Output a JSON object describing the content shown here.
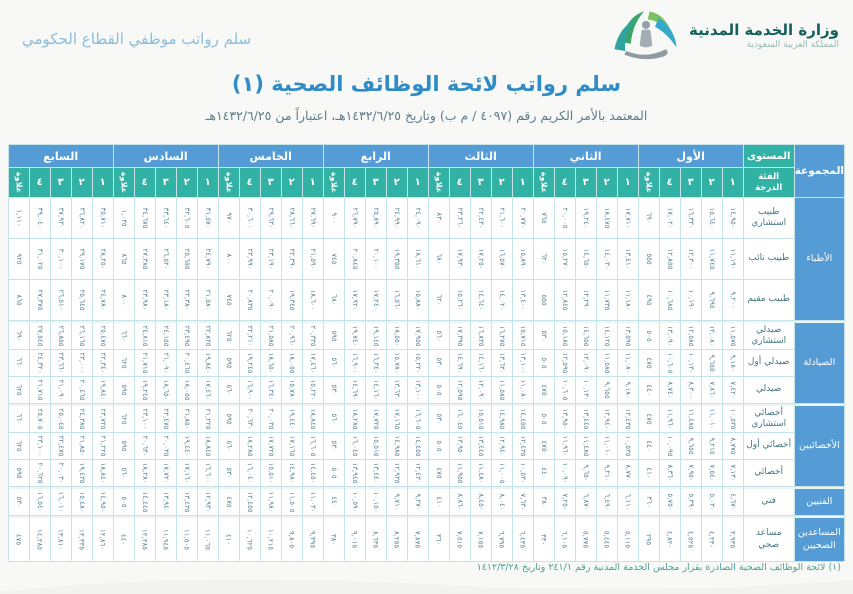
{
  "top_bar": {
    "slogan": "سلم رواتب موظفي القطاع الحكومي",
    "ministry_name": "وزارة الخدمة المدنية",
    "ministry_sub": "المملكة العربية السعودية"
  },
  "header": {
    "title": "سلم رواتب لائحة الوظائف الصحية (١)",
    "subtitle": "المعتمد بالأمر الكريم رقم (٤٠٩٧ / م ب) وتاريخ ١٤٣٢/٦/٢٥هـ، اعتباراً من ١٤٣٢/٦/٢٥هـ"
  },
  "footnote": "(١) لائحة الوظائف الصحية الصادرة بقرار مجلس الخدمة المدنية رقم ٢٤١/١ وتاريخ ١٤١٢/٣/٢٨",
  "colors": {
    "header_blue": "#559bd5",
    "header_teal": "#31b2a4",
    "grid_line": "#c5e4e8",
    "title_blue": "#2f8cc7",
    "number_text": "#5c8694",
    "footnote_teal": "#4aa294"
  },
  "table": {
    "corner": {
      "group": "المجموعة",
      "level": "المستوى",
      "grade_line1": "الفئة",
      "grade_line2": "الدرجة"
    },
    "allowance_label": "علاوة",
    "grade_cols": [
      "١",
      "٢",
      "٣",
      "٤"
    ],
    "levels": [
      "الأول",
      "الثاني",
      "الثالث",
      "الرابع",
      "الخامس",
      "السادس",
      "السابع"
    ],
    "groups": [
      {
        "name": "الأطباء",
        "rows": [
          {
            "label": "طبيب استشاري",
            "levels": [
              {
                "grades": [
                  "١٤,٩٥٠",
                  "١٥,٦٤٠",
                  "١٦,٣٣٠",
                  "١٧,٠٢٠"
                ],
                "allowance": "٦٩٠"
              },
              {
                "grades": [
                  "١٧,٧١٠",
                  "١٨,٤٧٥",
                  "١٩,٢٤٠",
                  "٢٠,٠٠٥"
                ],
                "allowance": "٧٦٥"
              },
              {
                "grades": [
                  "٢٠,٧٧٠",
                  "٢١,٦٠٠",
                  "٢٢,٤٣٠",
                  "٢٣,٢٦٠"
                ],
                "allowance": "٨٣٠"
              },
              {
                "grades": [
                  "٢٤,٠٩٠",
                  "٢٤,٩٩٠",
                  "٢٥,٨٩٠",
                  "٢٦,٧٩٠"
                ],
                "allowance": "٩٠٠"
              },
              {
                "grades": [
                  "٢٧,٦٩٠",
                  "٢٨,٦٦٠",
                  "٢٩,٦٣٠",
                  "٣٠,٦٠٠"
                ],
                "allowance": "٩٧٠"
              },
              {
                "grades": [
                  "٣١,٥٧٠",
                  "٣٢,٦٠٥",
                  "٣٣,٦٤٠",
                  "٣٤,٦٧٥"
                ],
                "allowance": "١,٠٣٥"
              },
              {
                "grades": [
                  "٣٥,٧١٠",
                  "٣٦,٨٢٠",
                  "٣٧,٩٣٠",
                  "٣٩,٠٤٠"
                ],
                "allowance": "١,١١٠"
              }
            ]
          },
          {
            "label": "طبيب نائب",
            "levels": [
              {
                "grades": [
                  "١١,١٩٠",
                  "١١,٧٤٥",
                  "١٢,٣٠٠",
                  "١٢,٨٥٥"
                ],
                "allowance": "٥٥٥"
              },
              {
                "grades": [
                  "١٣,٤١٠",
                  "١٤,٠٣٠",
                  "١٤,٦٥٠",
                  "١٥,٢٧٠"
                ],
                "allowance": "٦٢٠"
              },
              {
                "grades": [
                  "١٥,٨٩٠",
                  "١٦,٥٧٠",
                  "١٧,٢٥٠",
                  "١٧,٩٣٠"
                ],
                "allowance": "٦٨٠"
              },
              {
                "grades": [
                  "١٨,٦١٠",
                  "١٩,٣٥٥",
                  "٢٠,١٠٠",
                  "٢٠,٨٤٥"
                ],
                "allowance": "٧٤٥"
              },
              {
                "grades": [
                  "٢١,٥٩٠",
                  "٢٢,٣٩٠",
                  "٢٣,١٩٠",
                  "٢٣,٩٩٠"
                ],
                "allowance": "٨٠٠"
              },
              {
                "grades": [
                  "٢٤,٧٩٠",
                  "٢٥,٦٥٥",
                  "٢٦,٥٢٠",
                  "٢٧,٣٨٥"
                ],
                "allowance": "٨٦٥"
              },
              {
                "grades": [
                  "٢٨,٢٥٠",
                  "٢٩,١٧٥",
                  "٣٠,١٠٠",
                  "٣١,٠٢٥"
                ],
                "allowance": "٩٢٥"
              }
            ]
          },
          {
            "label": "طبيب مقيم",
            "levels": [
              {
                "grades": [
                  "٩,٢٠٠",
                  "٩,٦٩٥",
                  "١٠,١٩٠",
                  "١٠,٦٨٥"
                ],
                "allowance": "٤٩٥"
              },
              {
                "grades": [
                  "١١,١٨٠",
                  "١١,٧٣٥",
                  "١٢,٢٩٠",
                  "١٢,٨٤٥"
                ],
                "allowance": "٥٥٥"
              },
              {
                "grades": [
                  "١٣,٤٠٠",
                  "١٤,٠٢٠",
                  "١٤,٦٤٠",
                  "١٥,٢٦٠"
                ],
                "allowance": "٦٢٠"
              },
              {
                "grades": [
                  "١٥,٨٨٠",
                  "١٦,٥٦٠",
                  "١٧,٢٤٠",
                  "١٧,٩٢٠"
                ],
                "allowance": "٦٨٠"
              },
              {
                "grades": [
                  "١٨,٦٠٠",
                  "١٩,٣٤٥",
                  "٢٠,٠٩٠",
                  "٢٠,٨٣٥"
                ],
                "allowance": "٧٤٥"
              },
              {
                "grades": [
                  "٢١,٥٨٠",
                  "٢٢,٣٨٠",
                  "٢٣,١٨٠",
                  "٢٣,٩٨٠"
                ],
                "allowance": "٨٠٠"
              },
              {
                "grades": [
                  "٢٤,٧٨٠",
                  "٢٥,٦٤٥",
                  "٢٦,٥١٠",
                  "٢٧,٣٧٥"
                ],
                "allowance": "٨٦٥"
              }
            ]
          }
        ]
      },
      {
        "name": "الصيادلة",
        "rows": [
          {
            "label": "صيدلي استشاري",
            "levels": [
              {
                "grades": [
                  "١١,٥٧٥",
                  "١٢,٠٨٠",
                  "١٢,٥٨٥",
                  "١٣,٠٩٠"
                ],
                "allowance": "٥٠٥"
              },
              {
                "grades": [
                  "١٣,٥٩٥",
                  "١٤,١٢٥",
                  "١٤,٦٥٥",
                  "١٥,١٨٥"
                ],
                "allowance": "٥٣٠"
              },
              {
                "grades": [
                  "١٥,٧١٥",
                  "١٦,٢٧٥",
                  "١٦,٨٣٥",
                  "١٧,٣٩٥"
                ],
                "allowance": "٥٦٠"
              },
              {
                "grades": [
                  "١٧,٩٥٥",
                  "١٨,٥٥٠",
                  "١٩,١٤٥",
                  "١٩,٧٤٠"
                ],
                "allowance": "٥٩٥"
              },
              {
                "grades": [
                  "٢٠,٣٣٥",
                  "٢٠,٩٦٠",
                  "٢١,٥٨٥",
                  "٢٢,٢١٠"
                ],
                "allowance": "٦٢٥"
              },
              {
                "grades": [
                  "٢٢,٨٣٥",
                  "٢٣,٤٩٥",
                  "٢٤,١٥٥",
                  "٢٤,٨١٥"
                ],
                "allowance": "٦٦٠"
              },
              {
                "grades": [
                  "٢٥,٤٧٥",
                  "٢٦,١٦٥",
                  "٢٦,٨٥٥",
                  "٢٧,٥٤٥"
                ],
                "allowance": "٦٩٠"
              }
            ]
          },
          {
            "label": "صيدلي أول",
            "levels": [
              {
                "grades": [
                  "٩,١٨٠",
                  "٩,٦٥٥",
                  "١٠,١٣٠",
                  "١٠,٦٠٥"
                ],
                "allowance": "٤٧٥"
              },
              {
                "grades": [
                  "١١,٠٨٠",
                  "١١,٥٨٥",
                  "١٢,٠٩٠",
                  "١٢,٥٩٥"
                ],
                "allowance": "٥٠٥"
              },
              {
                "grades": [
                  "١٣,١٠٠",
                  "١٣,٦٣٠",
                  "١٤,١٦٠",
                  "١٤,٦٩٠"
                ],
                "allowance": "٥٣٠"
              },
              {
                "grades": [
                  "١٥,٢٢٠",
                  "١٥,٧٨٠",
                  "١٦,٣٤٠",
                  "١٦,٩٠٠"
                ],
                "allowance": "٥٦٠"
              },
              {
                "grades": [
                  "١٧,٤٦٠",
                  "١٨,٠٥٥",
                  "١٨,٦٥٠",
                  "١٩,٢٤٥"
                ],
                "allowance": "٥٩٥"
              },
              {
                "grades": [
                  "١٩,٨٤٠",
                  "٢٠,٤٦٥",
                  "٢١,٠٩٠",
                  "٢١,٧١٥"
                ],
                "allowance": "٦٢٥"
              },
              {
                "grades": [
                  "٢٢,٣٤٠",
                  "٢٣,٠٠٠",
                  "٢٣,٦٦٠",
                  "٢٤,٣٢٠"
                ],
                "allowance": "٦٦٠"
              }
            ]
          },
          {
            "label": "صيدلي",
            "levels": [
              {
                "grades": [
                  "٧,٤٢٠",
                  "٧,٨٦٠",
                  "٨,٣٠٠",
                  "٨,٧٤٠"
                ],
                "allowance": "٤٤٠"
              },
              {
                "grades": [
                  "٩,١٨٠",
                  "٩,٦٥٥",
                  "١٠,١٣٠",
                  "١٠,٦٠٥"
                ],
                "allowance": "٤٧٥"
              },
              {
                "grades": [
                  "١١,٠٨٠",
                  "١١,٥٨٥",
                  "١٢,٠٩٠",
                  "١٢,٥٩٥"
                ],
                "allowance": "٥٠٥"
              },
              {
                "grades": [
                  "١٣,١٠٠",
                  "١٣,٦٣٠",
                  "١٤,١٦٠",
                  "١٤,٦٩٠"
                ],
                "allowance": "٥٣٠"
              },
              {
                "grades": [
                  "١٥,٢٢٠",
                  "١٥,٧٨٠",
                  "١٦,٣٤٠",
                  "١٦,٩٠٠"
                ],
                "allowance": "٥٦٠"
              },
              {
                "grades": [
                  "١٧,٤٦٠",
                  "١٨,٠٥٥",
                  "١٨,٦٥٠",
                  "١٩,٢٤٥"
                ],
                "allowance": "٥٩٥"
              },
              {
                "grades": [
                  "١٩,٨٤٠",
                  "٢٠,٤٦٥",
                  "٢١,٠٩٠",
                  "٢١,٧١٥"
                ],
                "allowance": "٦٢٥"
              }
            ]
          }
        ]
      },
      {
        "name": "الأخصائيين",
        "rows": [
          {
            "label": "أخصائي استشاري",
            "levels": [
              {
                "grades": [
                  "١٠,٥٣٥",
                  "١١,٠١٠",
                  "١١,٤٨٥",
                  "١١,٩٦٠"
                ],
                "allowance": "٤٧٥"
              },
              {
                "grades": [
                  "١٢,٤٣٥",
                  "١٢,٩٤٠",
                  "١٣,٤٤٥",
                  "١٣,٩٥٠"
                ],
                "allowance": "٥٠٥"
              },
              {
                "grades": [
                  "١٤,٤٥٥",
                  "١٤,٩٨٥",
                  "١٥,٥١٥",
                  "١٦,٠٤٥"
                ],
                "allowance": "٥٣٠"
              },
              {
                "grades": [
                  "١٦,٦٠٥",
                  "١٧,١٦٥",
                  "١٧,٧٢٥",
                  "١٨,٢٨٥"
                ],
                "allowance": "٥٦٠"
              },
              {
                "grades": [
                  "١٨,٨٤٥",
                  "١٩,٤٤٠",
                  "٢٠,٠٣٥",
                  "٢٠,٦٣٠"
                ],
                "allowance": "٥٩٥"
              },
              {
                "grades": [
                  "٢١,٢٢٥",
                  "٢١,٨٥٠",
                  "٢٢,٤٧٥",
                  "٢٣,١٠٠"
                ],
                "allowance": "٦٢٥"
              },
              {
                "grades": [
                  "٢٣,٧٢٥",
                  "٢٤,٣٨٥",
                  "٢٥,٠٤٥",
                  "٢٥,٧٠٥"
                ],
                "allowance": "٦٦٠"
              }
            ]
          },
          {
            "label": "أخصائي أول",
            "levels": [
              {
                "grades": [
                  "٨,٧٧٥",
                  "٩,٢١٥",
                  "٩,٦٥٥",
                  "١٠,٠٩٥"
                ],
                "allowance": "٤٤٠"
              },
              {
                "grades": [
                  "١٠,٥٣٥",
                  "١١,٠١٠",
                  "١١,٤٨٥",
                  "١١,٩٦٠"
                ],
                "allowance": "٤٧٥"
              },
              {
                "grades": [
                  "١٢,٤٣٥",
                  "١٢,٩٤٠",
                  "١٣,٤٤٥",
                  "١٣,٩٥٠"
                ],
                "allowance": "٥٠٥"
              },
              {
                "grades": [
                  "١٤,٤٥٥",
                  "١٤,٩٨٥",
                  "١٥,٥١٥",
                  "١٦,٠٤٥"
                ],
                "allowance": "٥٣٠"
              },
              {
                "grades": [
                  "١٦,٦٠٥",
                  "١٧,١٦٥",
                  "١٧,٧٢٥",
                  "١٨,٢٨٥"
                ],
                "allowance": "٥٦٠"
              },
              {
                "grades": [
                  "١٨,٨٤٥",
                  "١٩,٤٤٠",
                  "٢٠,٠٣٥",
                  "٢٠,٦٣٠"
                ],
                "allowance": "٥٩٥"
              },
              {
                "grades": [
                  "٢١,٢٢٥",
                  "٢١,٨٥٠",
                  "٢٢,٤٧٥",
                  "٢٣,١٠٠"
                ],
                "allowance": "٦٢٥"
              }
            ]
          },
          {
            "label": "أخصائي",
            "levels": [
              {
                "grades": [
                  "٧,١٣٠",
                  "٧,٥٤٠",
                  "٧,٩٥٠",
                  "٨,٣٦٠"
                ],
                "allowance": "٤١٠"
              },
              {
                "grades": [
                  "٨,٧٧٠",
                  "٩,٢١٠",
                  "٩,٦٥٠",
                  "١٠,٠٩٠"
                ],
                "allowance": "٤٤٠"
              },
              {
                "grades": [
                  "١٠,٥٣٠",
                  "١١,٠٠٥",
                  "١١,٤٨٠",
                  "١١,٩٥٥"
                ],
                "allowance": "٤٧٥"
              },
              {
                "grades": [
                  "١٢,٤٣٠",
                  "١٢,٩٣٥",
                  "١٣,٤٤٠",
                  "١٣,٩٤٥"
                ],
                "allowance": "٥٠٥"
              },
              {
                "grades": [
                  "١٤,٤٥٠",
                  "١٤,٩٨٠",
                  "١٥,٥١٠",
                  "١٦,٠٤٠"
                ],
                "allowance": "٥٣٠"
              },
              {
                "grades": [
                  "١٦,٦٠٠",
                  "١٧,١٦٠",
                  "١٧,٧٢٠",
                  "١٨,٢٨٠"
                ],
                "allowance": "٥٦٠"
              },
              {
                "grades": [
                  "١٨,٨٤٠",
                  "١٩,٤٣٥",
                  "٢٠,٠٣٠",
                  "٢٠,٦٢٥"
                ],
                "allowance": "٥٩٥"
              }
            ]
          }
        ]
      },
      {
        "name": "الفنيين",
        "rows": [
          {
            "label": "فني",
            "levels": [
              {
                "grades": [
                  "٤,٦٧٠",
                  "٥,٠٣٠",
                  "٥,٣٩٠",
                  "٥,٧٥٠"
                ],
                "allowance": "٣٦٠"
              },
              {
                "grades": [
                  "٦,١١٠",
                  "٦,٤٩٠",
                  "٦,٨٧٠",
                  "٧,٢٥٠"
                ],
                "allowance": "٣٨٠"
              },
              {
                "grades": [
                  "٧,٦٣٠",
                  "٨,٠٤٠",
                  "٨,٤٥٠",
                  "٨,٨٦٠"
                ],
                "allowance": "٤١٠"
              },
              {
                "grades": [
                  "٩,٢٧٠",
                  "٩,٧١٠",
                  "١٠,١٥٠",
                  "١٠,٥٩٠"
                ],
                "allowance": "٤٤٠"
              },
              {
                "grades": [
                  "١١,٠٣٠",
                  "١١,٥٠٥",
                  "١١,٩٨٠",
                  "١٢,٤٥٥"
                ],
                "allowance": "٤٧٥"
              },
              {
                "grades": [
                  "١٢,٩٣٠",
                  "١٣,٤٣٥",
                  "١٣,٩٤٠",
                  "١٤,٤٤٥"
                ],
                "allowance": "٥٠٥"
              },
              {
                "grades": [
                  "١٤,٩٥٠",
                  "١٥,٤٨٠",
                  "١٦,٠١٠",
                  "١٦,٥٤٠"
                ],
                "allowance": "٥٣٠"
              }
            ]
          }
        ]
      },
      {
        "name": "المساعدين الصحيين",
        "rows": [
          {
            "label": "مساعد صحي",
            "levels": [
              {
                "grades": [
                  "٣,٩٣٥",
                  "٤,٢٣٠",
                  "٤,٥٢٥",
                  "٤,٨٢٠"
                ],
                "allowance": "٢٩٥"
              },
              {
                "grades": [
                  "٥,١١٥",
                  "٥,٤٤٥",
                  "٥,٧٧٥",
                  "٦,١٠٥"
                ],
                "allowance": "٣٣٠"
              },
              {
                "grades": [
                  "٦,٤٣٥",
                  "٦,٧٩٥",
                  "٧,١٥٥",
                  "٧,٥١٥"
                ],
                "allowance": "٣٦٠"
              },
              {
                "grades": [
                  "٧,٨٧٥",
                  "٨,٢٥٥",
                  "٨,٦٣٥",
                  "٩,٠١٥"
                ],
                "allowance": "٣٨٠"
              },
              {
                "grades": [
                  "٩,٣٩٥",
                  "٩,٨٠٥",
                  "١٠,٢١٥",
                  "١٠,٦٢٥"
                ],
                "allowance": "٤١٠"
              },
              {
                "grades": [
                  "١١,٠٦٥",
                  "١١,٥٠٥",
                  "١١,٩٤٥",
                  "١٢,٣٨٥"
                ],
                "allowance": "٤٤٠"
              },
              {
                "grades": [
                  "١٢,٨٦٠",
                  "١٣,٣٣٥",
                  "١٣,٨١٠",
                  "١٤,٢٨٥"
                ],
                "allowance": "٤٧٥"
              }
            ]
          }
        ]
      }
    ]
  }
}
